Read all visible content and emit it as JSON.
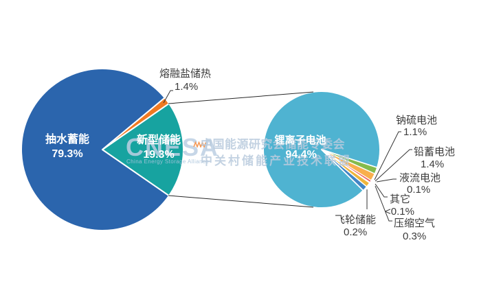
{
  "watermark": {
    "logo": "CNESA",
    "logo_tagline": "China Energy Storage Alliance",
    "line1": "中国能源研究会储能专委会",
    "line2": "中关村储能产业技术联盟"
  },
  "chart_data": [
    {
      "type": "pie",
      "role": "main-pie",
      "legend_position": "none",
      "slices": [
        {
          "label": "抽水蓄能",
          "value": 79.3,
          "display": "79.3%",
          "color": "#2B65AD"
        },
        {
          "label": "新型储能",
          "value": 19.3,
          "display": "19.3%",
          "color": "#17A3A0"
        },
        {
          "label": "熔融盐储热",
          "value": 1.4,
          "display": "1.4%",
          "color": "#F07A22"
        }
      ]
    },
    {
      "type": "pie",
      "role": "breakdown-pie-of-new-energy-storage",
      "legend_position": "none",
      "slices": [
        {
          "label": "锂离子电池",
          "value": 94.4,
          "display": "94.4%",
          "color": "#4FB3D1"
        },
        {
          "label": "钠硫电池",
          "value": 1.1,
          "display": "1.1%",
          "color": "#85BB4B"
        },
        {
          "label": "铅蓄电池",
          "value": 1.4,
          "display": "1.4%",
          "color": "#F9AF4C"
        },
        {
          "label": "液流电池",
          "value": 0.1,
          "display": "0.1%",
          "color": "#EE5C5C"
        },
        {
          "label": "其它",
          "value": 0.05,
          "display": "<0.1%",
          "color": "#DCDCDC"
        },
        {
          "label": "压缩空气",
          "value": 0.3,
          "display": "0.3%",
          "color": "#EFB53C"
        },
        {
          "label": "飞轮储能",
          "value": 0.2,
          "display": "0.2%",
          "color": "#4285C5"
        }
      ]
    }
  ]
}
